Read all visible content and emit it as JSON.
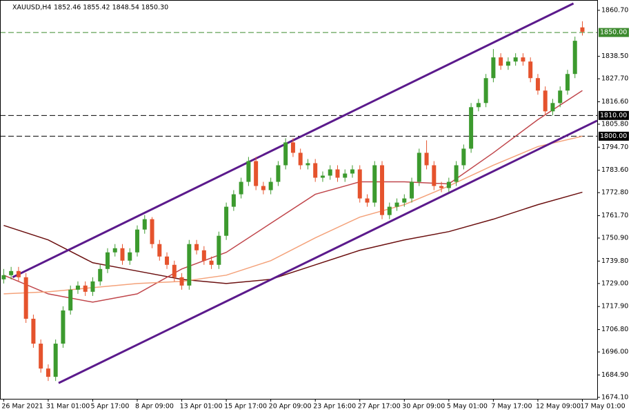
{
  "chart_data": {
    "type": "candlestick",
    "title": "XAUUSD,H4",
    "subtitle": "1852.46 1855.42 1848.54 1850.30",
    "categories": [
      "26 Mar 2021",
      null,
      null,
      null,
      null,
      null,
      "31 Mar 01:00",
      null,
      null,
      null,
      null,
      null,
      "5 Apr 17:00",
      null,
      null,
      null,
      null,
      null,
      "8 Apr 09:00",
      null,
      null,
      null,
      null,
      null,
      "13 Apr 01:00",
      null,
      null,
      null,
      null,
      null,
      "15 Apr 17:00",
      null,
      null,
      null,
      null,
      null,
      "20 Apr 09:00",
      null,
      null,
      null,
      null,
      null,
      "23 Apr 16:00",
      null,
      null,
      null,
      null,
      null,
      "27 Apr 17:00",
      null,
      null,
      null,
      null,
      null,
      "30 Apr 09:00",
      null,
      null,
      null,
      null,
      null,
      "5 May 01:00",
      null,
      null,
      null,
      null,
      null,
      "7 May 17:00",
      null,
      null,
      null,
      null,
      null,
      "12 May 09:00",
      null,
      null,
      null,
      null,
      null,
      "17 May 01:00"
    ],
    "open": [
      1731,
      1733,
      1735,
      1732,
      1712,
      1700,
      1688,
      1684,
      1700,
      1716,
      1726,
      1728,
      1725,
      1730,
      1736,
      1744,
      1746,
      1740,
      1744,
      1755,
      1760,
      1748,
      1742,
      1738,
      1732,
      1728,
      1748,
      1745,
      1740,
      1738,
      1752,
      1766,
      1772,
      1778,
      1788,
      1776,
      1774,
      1778,
      1786,
      1797,
      1792,
      1786,
      1787,
      1780,
      1781,
      1784,
      1780,
      1782,
      1784,
      1770,
      1768,
      1786,
      1762,
      1766,
      1768,
      1770,
      1778,
      1792,
      1786,
      1776,
      1775,
      1778,
      1786,
      1794,
      1814,
      1816,
      1828,
      1838,
      1834,
      1836,
      1838,
      1836,
      1828,
      1822,
      1812,
      1816,
      1822,
      1830,
      1852.46
    ],
    "high": [
      1736,
      1737,
      1737,
      1734,
      1714,
      1702,
      1690,
      1702,
      1718,
      1728,
      1730,
      1730,
      1732,
      1738,
      1746,
      1748,
      1748,
      1746,
      1757,
      1762,
      1761,
      1750,
      1744,
      1740,
      1734,
      1750,
      1750,
      1747,
      1742,
      1754,
      1768,
      1774,
      1780,
      1790,
      1790,
      1778,
      1780,
      1788,
      1799,
      1799,
      1794,
      1789,
      1789,
      1783,
      1786,
      1786,
      1784,
      1786,
      1786,
      1772,
      1788,
      1788,
      1768,
      1770,
      1772,
      1780,
      1794,
      1798,
      1788,
      1778,
      1780,
      1788,
      1796,
      1816,
      1818,
      1830,
      1842,
      1840,
      1838,
      1840,
      1840,
      1838,
      1830,
      1824,
      1818,
      1824,
      1832,
      1848,
      1855.42
    ],
    "low": [
      1729,
      1731,
      1730,
      1710,
      1698,
      1686,
      1682,
      1682,
      1698,
      1714,
      1724,
      1723,
      1723,
      1728,
      1734,
      1742,
      1738,
      1738,
      1742,
      1753,
      1746,
      1740,
      1736,
      1730,
      1726,
      1726,
      1743,
      1738,
      1736,
      1736,
      1750,
      1764,
      1770,
      1776,
      1774,
      1772,
      1772,
      1776,
      1784,
      1790,
      1784,
      1784,
      1778,
      1778,
      1779,
      1778,
      1778,
      1780,
      1768,
      1766,
      1766,
      1760,
      1760,
      1764,
      1766,
      1768,
      1776,
      1784,
      1774,
      1773,
      1773,
      1776,
      1784,
      1792,
      1812,
      1814,
      1826,
      1832,
      1832,
      1834,
      1834,
      1826,
      1820,
      1810,
      1810,
      1814,
      1820,
      1828,
      1848.54
    ],
    "close": [
      1733,
      1735,
      1732,
      1712,
      1700,
      1688,
      1684,
      1700,
      1716,
      1726,
      1728,
      1725,
      1730,
      1736,
      1744,
      1746,
      1740,
      1744,
      1755,
      1760,
      1748,
      1742,
      1738,
      1732,
      1728,
      1748,
      1745,
      1740,
      1738,
      1752,
      1766,
      1772,
      1778,
      1788,
      1776,
      1774,
      1778,
      1786,
      1797,
      1792,
      1786,
      1787,
      1780,
      1781,
      1784,
      1780,
      1782,
      1784,
      1770,
      1768,
      1786,
      1762,
      1766,
      1768,
      1770,
      1778,
      1792,
      1786,
      1776,
      1775,
      1778,
      1786,
      1794,
      1814,
      1816,
      1828,
      1838,
      1834,
      1836,
      1838,
      1836,
      1828,
      1822,
      1812,
      1816,
      1822,
      1830,
      1846,
      1850.3
    ],
    "up_color": "#3c9a2e",
    "down_color": "#e5532d",
    "series": [
      {
        "color": "#6b0f0f",
        "x": [
          0,
          6,
          12,
          18,
          24,
          30,
          36,
          42,
          48,
          54,
          60,
          66,
          72,
          78
        ],
        "values": [
          1757,
          1750,
          1739,
          1735,
          1731,
          1729,
          1731,
          1738,
          1745,
          1750,
          1754,
          1760,
          1767,
          1773
        ]
      },
      {
        "color": "#c0464b",
        "x": [
          0,
          6,
          12,
          18,
          24,
          30,
          36,
          42,
          48,
          54,
          60,
          66,
          72,
          78
        ],
        "values": [
          1733,
          1724,
          1720,
          1724,
          1736,
          1744,
          1758,
          1772,
          1778,
          1778,
          1777,
          1792,
          1808,
          1822
        ]
      },
      {
        "color": "#f4a27a",
        "x": [
          0,
          6,
          12,
          18,
          24,
          30,
          36,
          42,
          48,
          54,
          60,
          66,
          72,
          78
        ],
        "values": [
          1724,
          1725,
          1727,
          1729,
          1730,
          1733,
          1740,
          1751,
          1761,
          1767,
          1776,
          1786,
          1795,
          1800
        ]
      }
    ],
    "trendlines": [
      {
        "color": "#5b1a8c",
        "x": [
          1.2,
          76.8
        ],
        "values": [
          1732,
          1864
        ]
      },
      {
        "color": "#5b1a8c",
        "x": [
          7.4,
          80
        ],
        "values": [
          1681,
          1807.5
        ]
      }
    ],
    "levels": [
      {
        "value": 1850,
        "label": "1850.00",
        "color": "#3c8a2e"
      },
      {
        "value": 1810,
        "label": "1810.00",
        "color": "#000000"
      },
      {
        "value": 1800,
        "label": "1800.00",
        "color": "#000000"
      }
    ],
    "xlim": [
      -0.5,
      80
    ],
    "ylim": [
      1673.4,
      1864.0
    ],
    "yticks": [
      {
        "value": 1860.7,
        "label": "1860.70"
      },
      {
        "value": 1838.5,
        "label": "1838.50"
      },
      {
        "value": 1827.7,
        "label": "1827.70"
      },
      {
        "value": 1816.6,
        "label": "1816.60"
      },
      {
        "value": 1805.8,
        "label": "1805.80"
      },
      {
        "value": 1794.7,
        "label": "1794.70"
      },
      {
        "value": 1783.6,
        "label": "1783.60"
      },
      {
        "value": 1772.8,
        "label": "1772.80"
      },
      {
        "value": 1761.7,
        "label": "1761.70"
      },
      {
        "value": 1750.9,
        "label": "1750.90"
      },
      {
        "value": 1739.8,
        "label": "1739.80"
      },
      {
        "value": 1729,
        "label": "1729.00"
      },
      {
        "value": 1717.9,
        "label": "1717.90"
      },
      {
        "value": 1706.8,
        "label": "1706.80"
      },
      {
        "value": 1696,
        "label": "1696.00"
      },
      {
        "value": 1684.9,
        "label": "1684.90"
      },
      {
        "value": 1674.1,
        "label": "1674.10"
      }
    ]
  }
}
